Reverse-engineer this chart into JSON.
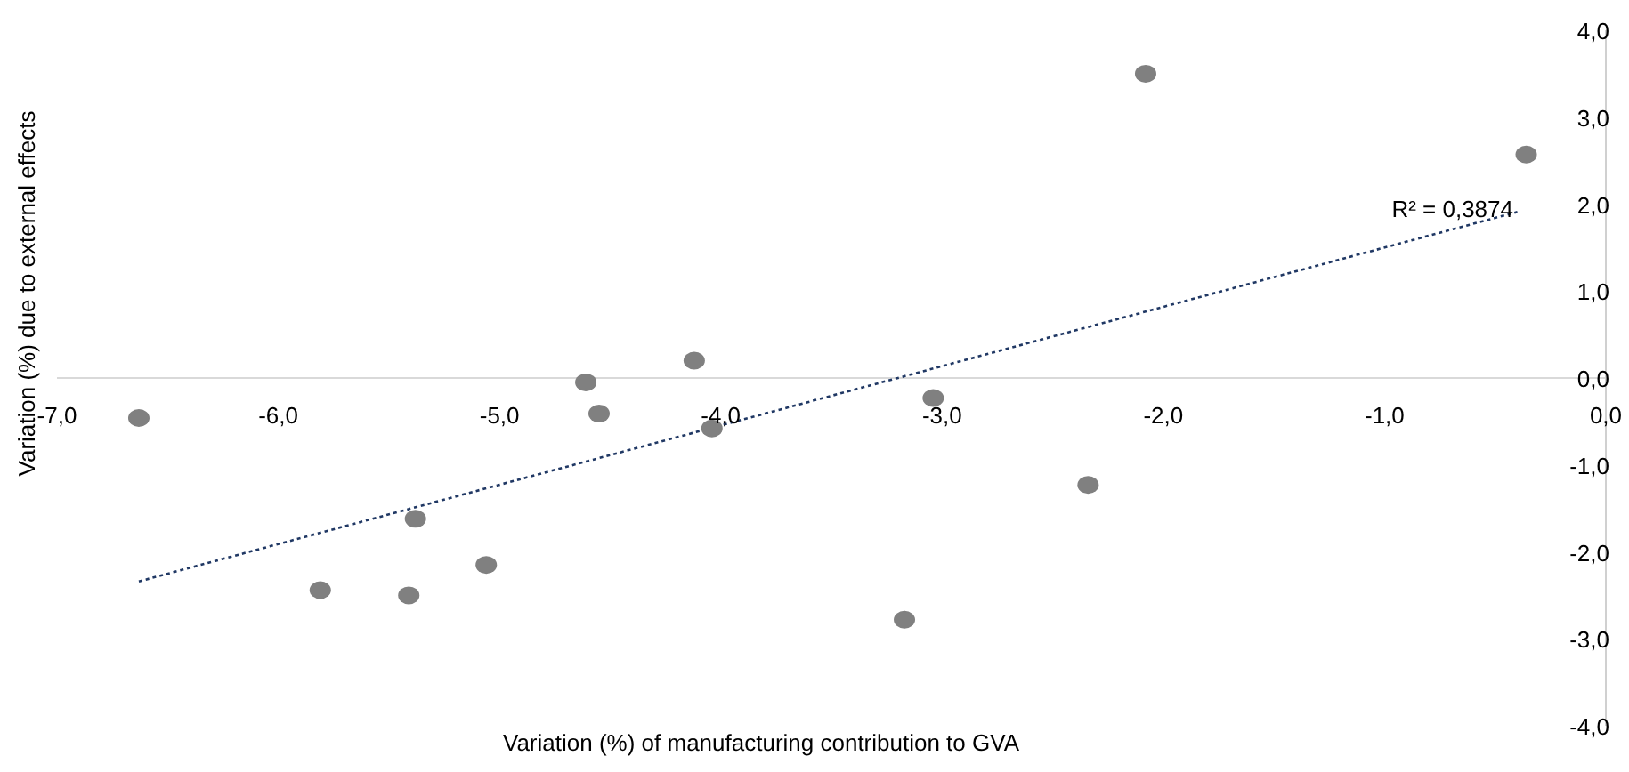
{
  "chart_data": {
    "type": "scatter",
    "xlabel": "Variation (%) of manufacturing contribution to GVA",
    "ylabel": "Variation (%) due to external effects",
    "annotations": [
      "R² = 0,3874"
    ],
    "xlim": [
      -7,
      0
    ],
    "ylim": [
      -4,
      4
    ],
    "xticks": [
      {
        "value": -7,
        "label": "-7,0"
      },
      {
        "value": -6,
        "label": "-6,0"
      },
      {
        "value": -5,
        "label": "-5,0"
      },
      {
        "value": -4,
        "label": "-4,0"
      },
      {
        "value": -3,
        "label": "-3,0"
      },
      {
        "value": -2,
        "label": "-2,0"
      },
      {
        "value": -1,
        "label": "-1,0"
      },
      {
        "value": 0,
        "label": "0,0"
      }
    ],
    "yticks": [
      {
        "value": -4,
        "label": "-4,0"
      },
      {
        "value": -3,
        "label": "-3,0"
      },
      {
        "value": -2,
        "label": "-2,0"
      },
      {
        "value": -1,
        "label": "-1,0"
      },
      {
        "value": 0,
        "label": "0,0"
      },
      {
        "value": 1,
        "label": "1,0"
      },
      {
        "value": 2,
        "label": "2,0"
      },
      {
        "value": 3,
        "label": "3,0"
      },
      {
        "value": 4,
        "label": "4,0"
      }
    ],
    "series": [
      {
        "marker": "circle",
        "color": "#808080",
        "x": [
          -6.63,
          -5.81,
          -5.41,
          -5.38,
          -5.06,
          -4.61,
          -4.55,
          -4.12,
          -4.04,
          -3.04,
          -3.17,
          -2.34,
          -2.08,
          -0.36
        ],
        "values": [
          -0.46,
          -2.44,
          -2.5,
          -1.62,
          -2.15,
          -0.05,
          -0.41,
          0.2,
          -0.58,
          -0.23,
          -2.78,
          -1.23,
          3.5,
          2.57
        ]
      },
      {
        "type": "line",
        "color": "#203864",
        "line_style": "dotted",
        "x": [
          -6.63,
          -0.4
        ],
        "values": [
          -2.34,
          1.91
        ]
      }
    ]
  }
}
